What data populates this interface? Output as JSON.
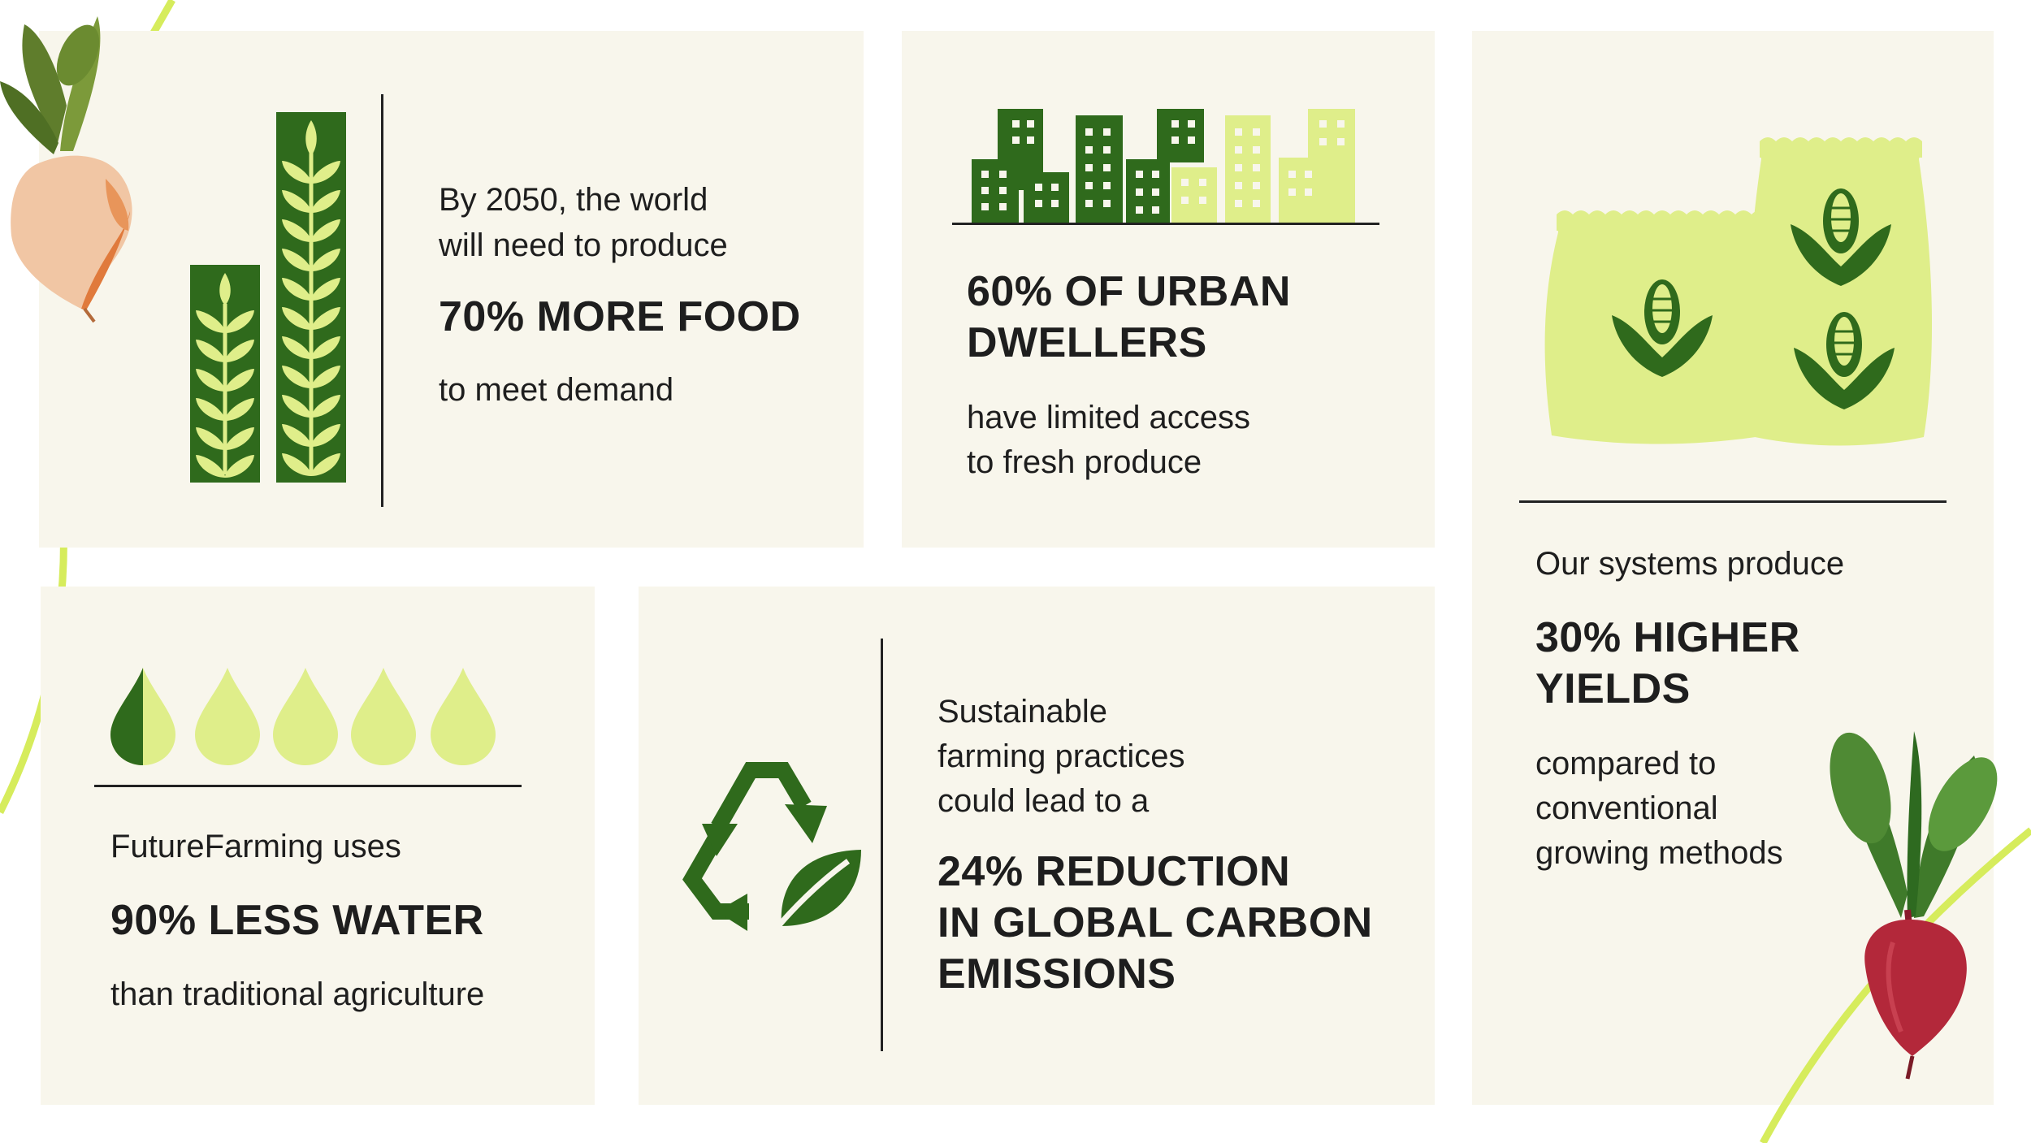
{
  "colors": {
    "card_bg": "#f8f6ec",
    "dark_green": "#2f6a1c",
    "light_green": "#dfee8a",
    "accent_line": "#d6ec5c",
    "text": "#1e1e1e"
  },
  "food": {
    "line1": "By 2050, the world",
    "line2": "will need to produce",
    "stat": "70% MORE FOOD",
    "sub": "to meet demand",
    "icon": "wheat-bars-icon"
  },
  "urban": {
    "stat_line1": "60% OF URBAN",
    "stat_line2": "DWELLERS",
    "sub_line1": "have limited access",
    "sub_line2": "to fresh produce",
    "icon": "city-skyline-icon"
  },
  "yield": {
    "intro": "Our systems produce",
    "stat_line1": "30% HIGHER",
    "stat_line2": "YIELDS",
    "sub_line1": "compared to",
    "sub_line2": "conventional",
    "sub_line3": "growing methods",
    "icon": "corn-sacks-icon"
  },
  "water": {
    "intro": "FutureFarming uses",
    "stat": "90% LESS WATER",
    "sub": "than traditional agriculture",
    "icon": "water-drops-icon"
  },
  "carbon": {
    "line1": "Sustainable",
    "line2": "farming practices",
    "line3": "could lead to a",
    "stat_line1": "24% REDUCTION",
    "stat_line2": "IN GLOBAL CARBON",
    "stat_line3": "EMISSIONS",
    "icon": "recycle-leaf-icon"
  },
  "decorations": [
    "turnip-icon",
    "beetroot-icon"
  ]
}
